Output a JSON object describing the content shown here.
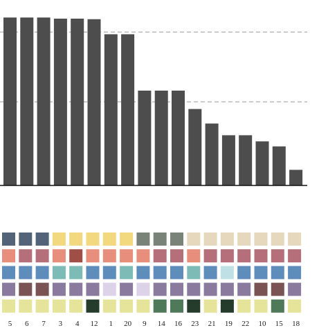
{
  "chart_data": {
    "type": "bar",
    "categories": [
      "5",
      "6",
      "7",
      "3",
      "4",
      "12",
      "1",
      "20",
      "9",
      "14",
      "16",
      "23",
      "21",
      "19",
      "22",
      "10",
      "15",
      "18"
    ],
    "values": [
      301,
      301,
      301,
      299,
      299,
      298,
      271,
      271,
      170,
      170,
      170,
      137,
      111,
      90,
      90,
      79,
      70,
      28
    ],
    "ylim": [
      0,
      320
    ],
    "gridlines": [
      150,
      275
    ],
    "grid": "dashed horizontal",
    "bar_color": "#4d4d4d",
    "colors": {
      "row1": {
        "base": "#e6d8bd",
        "alt": "#f2d97f",
        "dark": "#536478",
        "mid": "#7a8378"
      },
      "row2": {
        "base": "#e88e7c",
        "alt": "#b46f7b",
        "dark": "#a04f47"
      },
      "row3": {
        "base": "#5f8dbb",
        "alt": "#7dbcb6",
        "light": "#bfe1e6"
      },
      "row4": {
        "base": "#8a7a9d",
        "alt": "#dcd3e8",
        "dark": "#7a5454"
      },
      "row5": {
        "base": "#e6e49a",
        "dark": "#253b2c",
        "mid": "#4f7a5a"
      }
    },
    "swatch_grid": [
      [
        "dark",
        "dark",
        "dark",
        "alt",
        "alt",
        "alt",
        "alt",
        "alt",
        "mid",
        "mid",
        "mid",
        "base",
        "base",
        "base",
        "base",
        "base",
        "base",
        "base"
      ],
      [
        "base",
        "alt",
        "alt",
        "base",
        "dark",
        "base",
        "base",
        "base",
        "base",
        "alt",
        "alt",
        "base",
        "alt",
        "alt",
        "alt",
        "alt",
        "alt",
        "alt"
      ],
      [
        "base",
        "base",
        "base",
        "alt",
        "alt",
        "base",
        "base",
        "alt",
        "base",
        "base",
        "base",
        "alt",
        "base",
        "light",
        "base",
        "base",
        "base",
        "base"
      ],
      [
        "base",
        "dark",
        "dark",
        "base",
        "base",
        "base",
        "alt",
        "base",
        "alt",
        "base",
        "base",
        "base",
        "base",
        "base",
        "base",
        "dark",
        "dark",
        "base"
      ],
      [
        "base",
        "base",
        "base",
        "base",
        "base",
        "dark",
        "base",
        "base",
        "base",
        "mid",
        "mid",
        "dark",
        "base",
        "dark",
        "base",
        "base",
        "mid",
        "base"
      ]
    ]
  }
}
